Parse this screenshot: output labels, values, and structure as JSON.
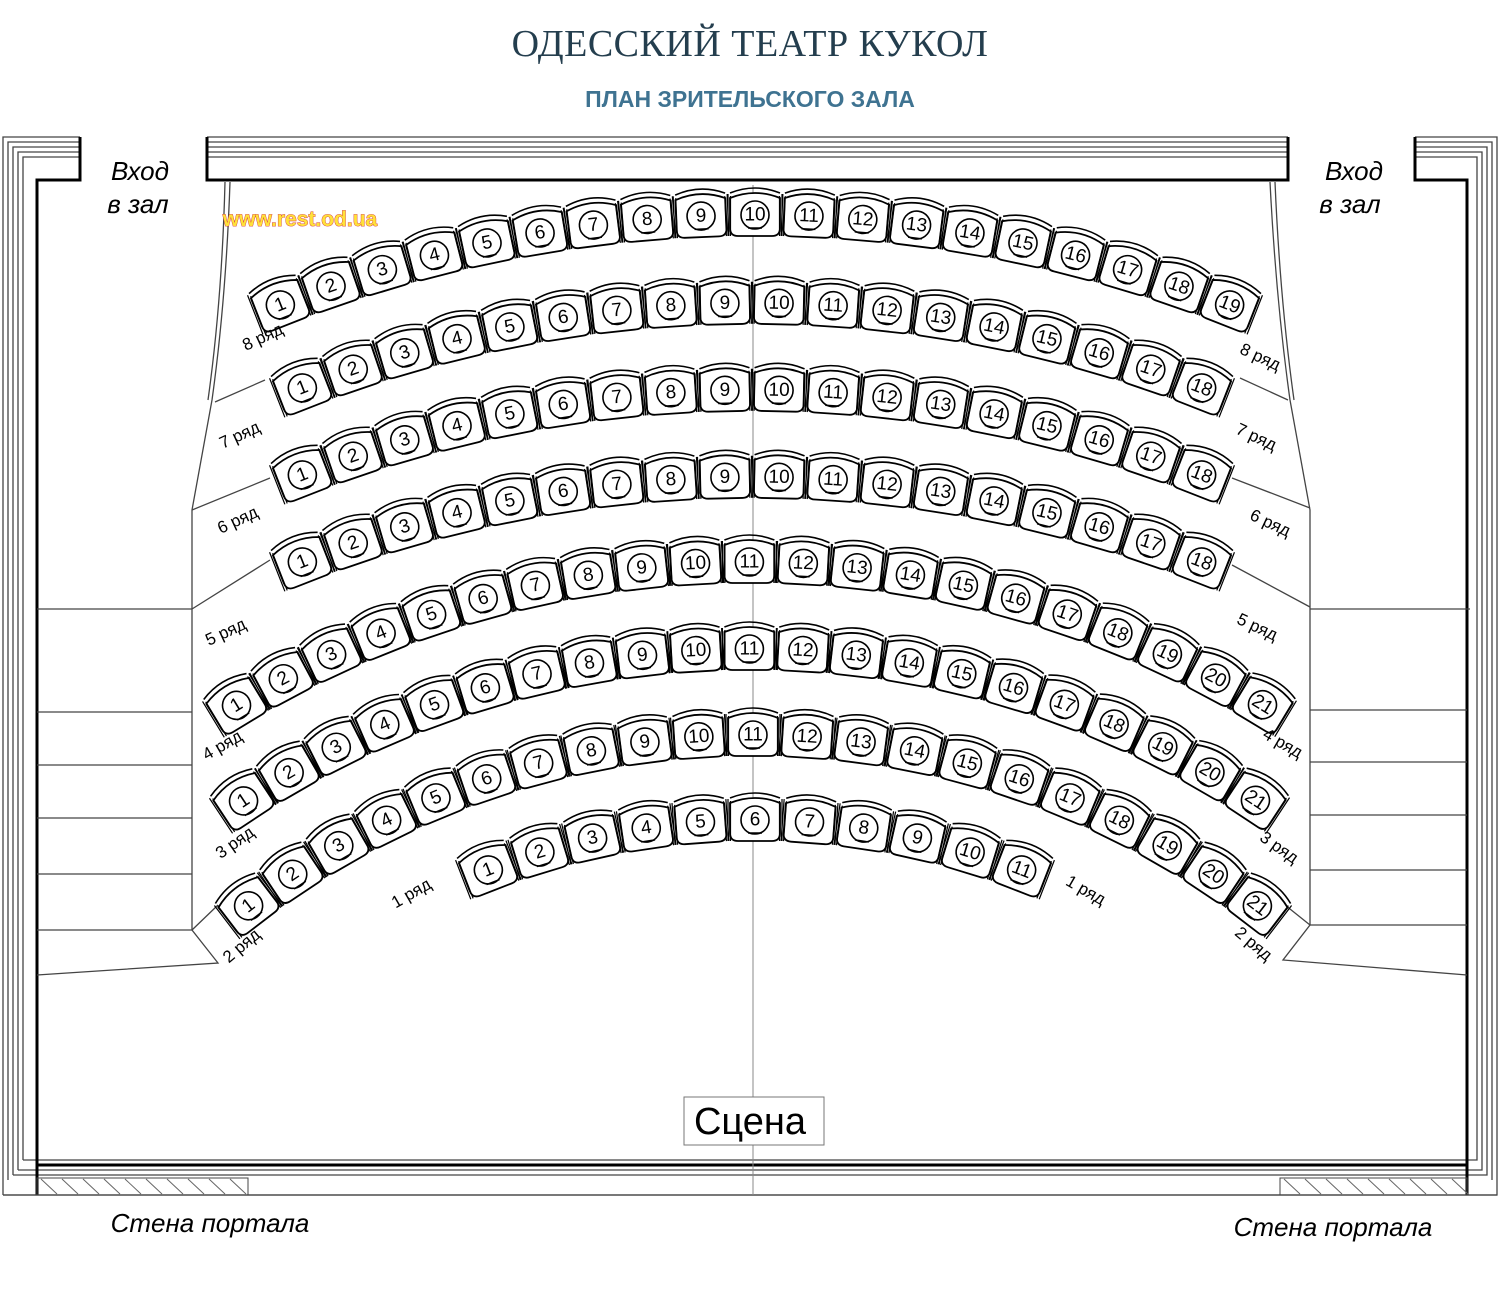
{
  "header": {
    "title": "ОДЕССКИЙ ТЕАТР КУКОЛ",
    "subtitle": "ПЛАН ЗРИТЕЛЬСКОГО ЗАЛА"
  },
  "entrances": {
    "left": {
      "line1": "Вход",
      "line2": "в  зал"
    },
    "right": {
      "line1": "Вход",
      "line2": "в  зал"
    }
  },
  "watermark": "www.rest.od.ua",
  "stage_label": "Сцена",
  "portal_wall": {
    "left": "Стена  портала",
    "right": "Стена  портала"
  },
  "rows": [
    {
      "number": 1,
      "label": "1  ряд",
      "seats": 11
    },
    {
      "number": 2,
      "label": "2  ряд",
      "seats": 21
    },
    {
      "number": 3,
      "label": "3  ряд",
      "seats": 21
    },
    {
      "number": 4,
      "label": "4  ряд",
      "seats": 21
    },
    {
      "number": 5,
      "label": "5  ряд",
      "seats": 18
    },
    {
      "number": 6,
      "label": "6  ряд",
      "seats": 18
    },
    {
      "number": 7,
      "label": "7  ряд",
      "seats": 18
    },
    {
      "number": 8,
      "label": "8  ряд",
      "seats": 19
    }
  ],
  "colors": {
    "title": "#243e4e",
    "subtitle": "#3f7391",
    "watermark_fill": "#ffe23a",
    "watermark_outline": "#d2283c"
  }
}
